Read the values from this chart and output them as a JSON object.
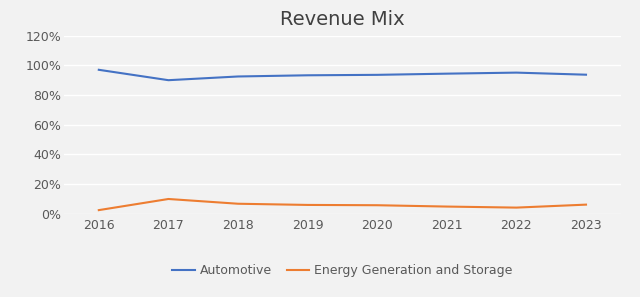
{
  "title": "Revenue Mix",
  "years": [
    2016,
    2017,
    2018,
    2019,
    2020,
    2021,
    2022,
    2023
  ],
  "automotive": [
    0.97,
    0.9,
    0.925,
    0.933,
    0.936,
    0.944,
    0.951,
    0.937
  ],
  "energy": [
    0.025,
    0.1,
    0.068,
    0.06,
    0.058,
    0.049,
    0.042,
    0.062
  ],
  "automotive_color": "#4472C4",
  "energy_color": "#ED7D31",
  "background_color": "#F2F2F2",
  "plot_bg_color": "#F2F2F2",
  "grid_color": "#FFFFFF",
  "ylim": [
    0,
    1.2
  ],
  "yticks": [
    0,
    0.2,
    0.4,
    0.6,
    0.8,
    1.0,
    1.2
  ],
  "title_fontsize": 14,
  "tick_fontsize": 9,
  "legend_labels": [
    "Automotive",
    "Energy Generation and Storage"
  ]
}
